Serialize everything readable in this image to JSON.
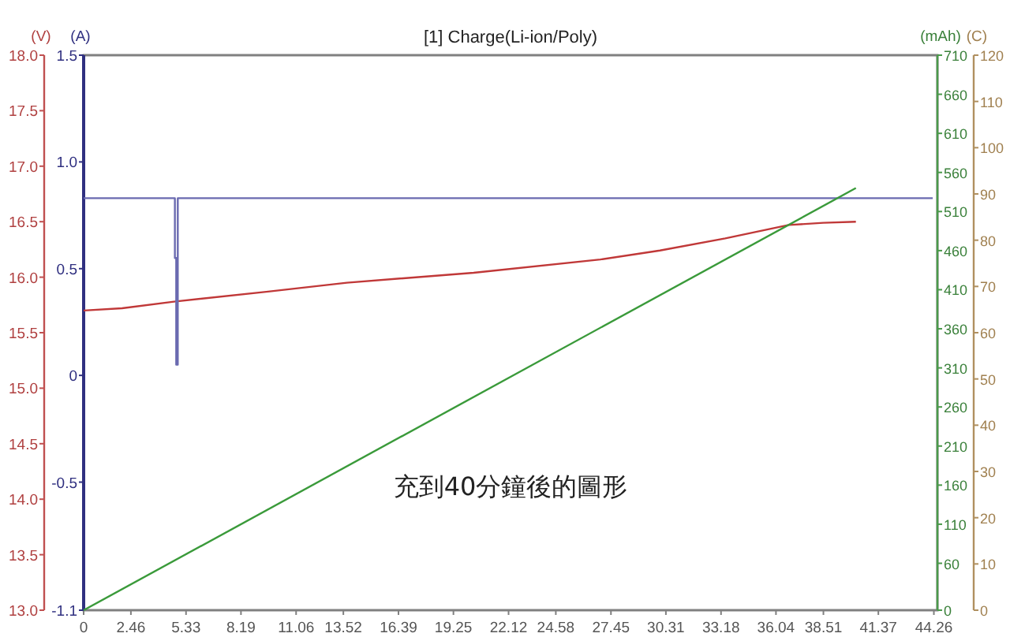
{
  "chart_data": [
    {
      "type": "line",
      "title": "[1] Charge(Li-ion/Poly)",
      "ylabel": "(V)",
      "y2label": "(A)",
      "y3label": "(mAh)",
      "xlim": [
        0,
        44.444
      ],
      "xticks": [
        0,
        2.46,
        5.33,
        8.19,
        11.06,
        13.52,
        16.39,
        19.25,
        22.12,
        24.58,
        27.45,
        30.31,
        33.18,
        36.04,
        38.51,
        41.37,
        44.26
      ],
      "ylim": [
        13,
        18
      ],
      "yticks": [
        {
          "value": 13,
          "label": "13.0"
        },
        13.5,
        {
          "value": 14,
          "label": "14.0"
        },
        14.5,
        {
          "value": 15,
          "label": "15.0"
        },
        15.5,
        {
          "value": 16,
          "label": "16.0"
        },
        16.5,
        {
          "value": 17,
          "label": "17.0"
        },
        17.5,
        {
          "value": 18,
          "label": "18.0"
        }
      ],
      "y2lim": [
        -1.1,
        1.5
      ],
      "y2ticks": [
        -1.1,
        -0.5,
        0,
        0.5,
        {
          "value": 1,
          "label": "1.0"
        },
        1.5
      ],
      "y3lim": [
        0,
        710
      ],
      "y3ticks": [
        0,
        60,
        110,
        160,
        210,
        260,
        310,
        360,
        410,
        460,
        510,
        560,
        610,
        660,
        710
      ],
      "marker": "none",
      "line_style": "solid",
      "series": [
        {
          "color": "#c03838",
          "axis": "y",
          "x": [
            0,
            2,
            4.7,
            9.6,
            13.7,
            20.3,
            26.9,
            30,
            33.4,
            36.7,
            38.5,
            40.2
          ],
          "values": [
            15.7,
            15.72,
            15.78,
            15.87,
            15.95,
            16.04,
            16.16,
            16.24,
            16.35,
            16.47,
            16.49,
            16.5
          ]
        },
        {
          "color": "#6a6ab0",
          "axis": "y2",
          "x": [
            0,
            4.75,
            4.75,
            4.82,
            4.82,
            4.9,
            4.9,
            44.2
          ],
          "values": [
            0.83,
            0.83,
            0.55,
            0.55,
            0.05,
            0.05,
            0.83,
            0.83
          ]
        },
        {
          "color": "#3a9a3a",
          "axis": "y3",
          "x": [
            0,
            40.2
          ],
          "values": [
            0,
            540
          ]
        }
      ],
      "annotations": [
        "充到40分鐘後的圖形"
      ]
    },
    {
      "type": "line",
      "ylabel": "(C)",
      "xlim": [
        0,
        44.444
      ],
      "ylim": [
        0,
        120
      ],
      "yticks": [
        0,
        10,
        20,
        30,
        40,
        50,
        60,
        70,
        80,
        90,
        100,
        110,
        120
      ],
      "tick_labels": "y"
    }
  ]
}
